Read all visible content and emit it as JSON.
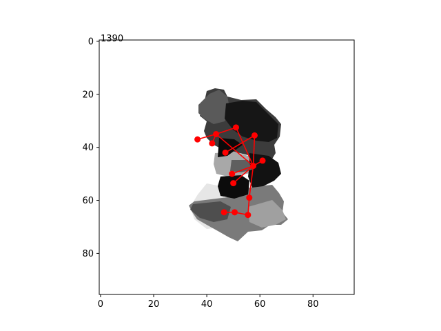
{
  "chart_data": {
    "type": "scatter",
    "title": "",
    "corner_label": "1390",
    "xlabel": "",
    "ylabel": "",
    "xlim": [
      -0.5,
      95.5
    ],
    "ylim": [
      95.5,
      -0.5
    ],
    "y_inverted": true,
    "x_ticks": [
      0,
      20,
      40,
      60,
      80
    ],
    "y_ticks": [
      0,
      20,
      40,
      60,
      80
    ],
    "grid": false,
    "colors": {
      "keypoints": "#ff0000",
      "axes": "#000000"
    },
    "background_image": "grayscale depth-map silhouette of a hand",
    "keypoints": [
      {
        "x": 57.5,
        "y": 47.0
      },
      {
        "x": 58.0,
        "y": 35.5
      },
      {
        "x": 51.0,
        "y": 32.5
      },
      {
        "x": 47.0,
        "y": 42.0
      },
      {
        "x": 61.0,
        "y": 45.0
      },
      {
        "x": 43.5,
        "y": 35.0
      },
      {
        "x": 36.5,
        "y": 37.0
      },
      {
        "x": 42.0,
        "y": 38.5
      },
      {
        "x": 49.5,
        "y": 50.0
      },
      {
        "x": 50.0,
        "y": 53.5
      },
      {
        "x": 56.0,
        "y": 59.0
      },
      {
        "x": 55.5,
        "y": 65.5
      },
      {
        "x": 50.5,
        "y": 64.5
      },
      {
        "x": 46.5,
        "y": 64.5
      }
    ],
    "skeleton": [
      [
        0,
        1
      ],
      [
        1,
        3
      ],
      [
        0,
        2
      ],
      [
        2,
        5
      ],
      [
        0,
        4
      ],
      [
        0,
        5
      ],
      [
        5,
        6
      ],
      [
        5,
        7
      ],
      [
        0,
        8
      ],
      [
        0,
        9
      ],
      [
        0,
        10
      ],
      [
        10,
        11
      ],
      [
        11,
        12
      ],
      [
        12,
        13
      ]
    ]
  }
}
